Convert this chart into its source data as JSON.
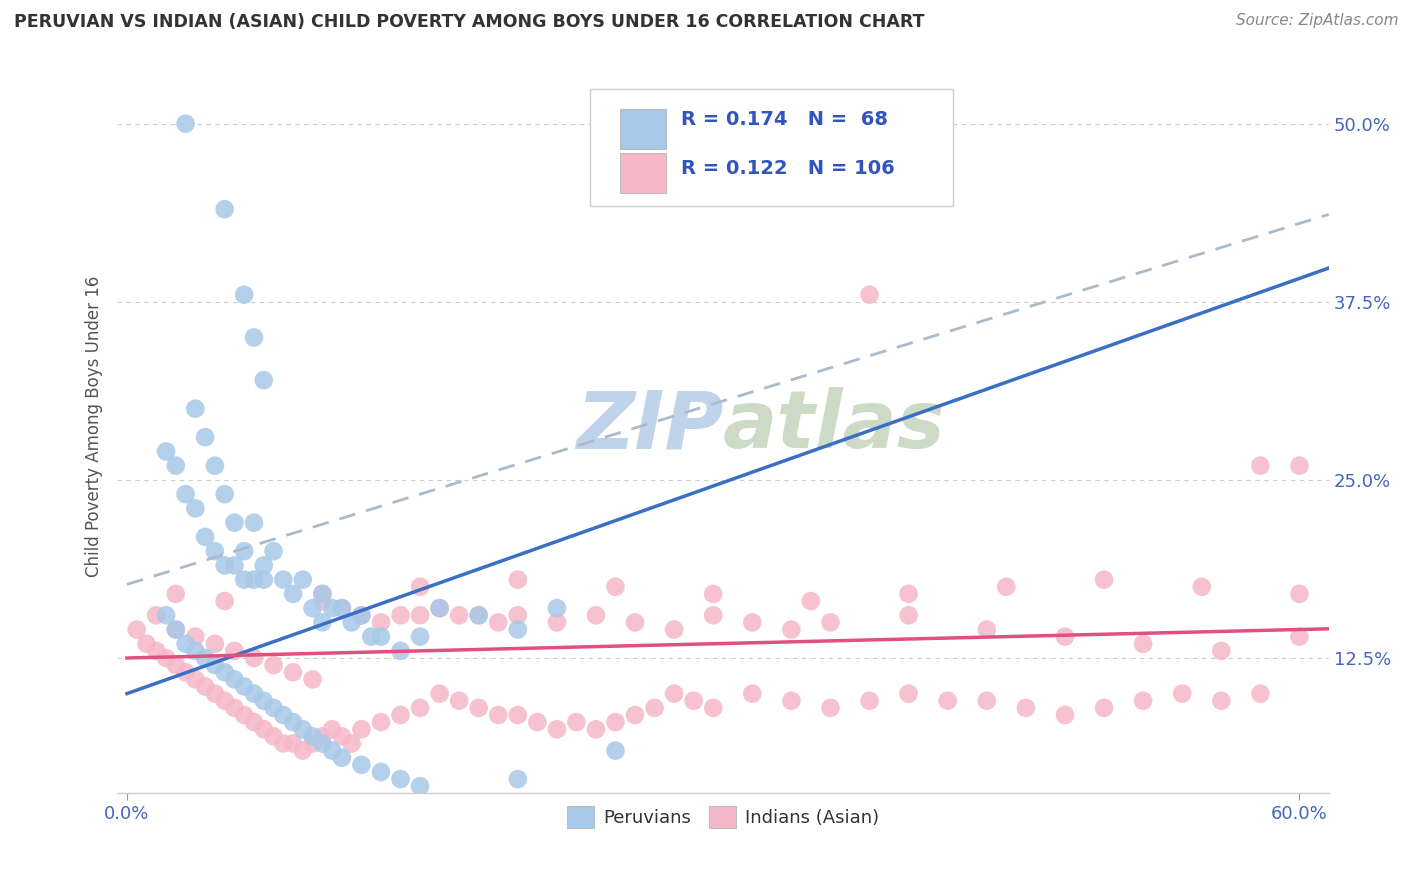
{
  "title": "PERUVIAN VS INDIAN (ASIAN) CHILD POVERTY AMONG BOYS UNDER 16 CORRELATION CHART",
  "source": "Source: ZipAtlas.com",
  "ylabel": "Child Poverty Among Boys Under 16",
  "ytick_labels": [
    "12.5%",
    "25.0%",
    "37.5%",
    "50.0%"
  ],
  "ytick_values": [
    0.125,
    0.25,
    0.375,
    0.5
  ],
  "xtick_labels": [
    "0.0%",
    "60.0%"
  ],
  "xtick_values": [
    0.0,
    0.6
  ],
  "xlim": [
    -0.005,
    0.615
  ],
  "ylim": [
    0.03,
    0.545
  ],
  "legend1_label": "Peruvians",
  "legend2_label": "Indians (Asian)",
  "R1": 0.174,
  "N1": 68,
  "R2": 0.122,
  "N2": 106,
  "blue_color": "#a8c8e8",
  "blue_line_color": "#3a6fc4",
  "pink_color": "#f5b8c8",
  "pink_line_color": "#e05080",
  "gray_dash_color": "#aabbcc",
  "watermark_color": "#c8d8e8",
  "background": "#ffffff",
  "blue_x": [
    0.03,
    0.05,
    0.06,
    0.065,
    0.07,
    0.035,
    0.04,
    0.045,
    0.05,
    0.055,
    0.06,
    0.065,
    0.07,
    0.02,
    0.025,
    0.03,
    0.035,
    0.04,
    0.045,
    0.05,
    0.055,
    0.06,
    0.065,
    0.07,
    0.075,
    0.08,
    0.085,
    0.09,
    0.095,
    0.1,
    0.1,
    0.105,
    0.11,
    0.115,
    0.12,
    0.125,
    0.13,
    0.14,
    0.15,
    0.16,
    0.18,
    0.2,
    0.22,
    0.02,
    0.025,
    0.03,
    0.035,
    0.04,
    0.045,
    0.05,
    0.055,
    0.06,
    0.065,
    0.07,
    0.075,
    0.08,
    0.085,
    0.09,
    0.095,
    0.1,
    0.105,
    0.11,
    0.12,
    0.13,
    0.14,
    0.15,
    0.2,
    0.25
  ],
  "blue_y": [
    0.5,
    0.44,
    0.38,
    0.35,
    0.32,
    0.3,
    0.28,
    0.26,
    0.24,
    0.22,
    0.2,
    0.22,
    0.18,
    0.27,
    0.26,
    0.24,
    0.23,
    0.21,
    0.2,
    0.19,
    0.19,
    0.18,
    0.18,
    0.19,
    0.2,
    0.18,
    0.17,
    0.18,
    0.16,
    0.17,
    0.15,
    0.16,
    0.16,
    0.15,
    0.155,
    0.14,
    0.14,
    0.13,
    0.14,
    0.16,
    0.155,
    0.145,
    0.16,
    0.155,
    0.145,
    0.135,
    0.13,
    0.125,
    0.12,
    0.115,
    0.11,
    0.105,
    0.1,
    0.095,
    0.09,
    0.085,
    0.08,
    0.075,
    0.07,
    0.065,
    0.06,
    0.055,
    0.05,
    0.045,
    0.04,
    0.035,
    0.04,
    0.06
  ],
  "pink_x": [
    0.005,
    0.01,
    0.015,
    0.02,
    0.025,
    0.03,
    0.035,
    0.04,
    0.045,
    0.05,
    0.055,
    0.06,
    0.065,
    0.07,
    0.075,
    0.08,
    0.085,
    0.09,
    0.095,
    0.1,
    0.105,
    0.11,
    0.115,
    0.12,
    0.13,
    0.14,
    0.15,
    0.16,
    0.17,
    0.18,
    0.19,
    0.2,
    0.21,
    0.22,
    0.23,
    0.24,
    0.25,
    0.26,
    0.27,
    0.28,
    0.29,
    0.3,
    0.32,
    0.34,
    0.36,
    0.38,
    0.4,
    0.42,
    0.44,
    0.46,
    0.48,
    0.5,
    0.52,
    0.54,
    0.56,
    0.58,
    0.6,
    0.015,
    0.025,
    0.035,
    0.045,
    0.055,
    0.065,
    0.075,
    0.085,
    0.095,
    0.1,
    0.11,
    0.12,
    0.13,
    0.14,
    0.15,
    0.16,
    0.17,
    0.18,
    0.19,
    0.2,
    0.22,
    0.24,
    0.26,
    0.28,
    0.3,
    0.32,
    0.34,
    0.36,
    0.4,
    0.44,
    0.48,
    0.52,
    0.56,
    0.6,
    0.025,
    0.05,
    0.1,
    0.15,
    0.2,
    0.25,
    0.3,
    0.35,
    0.4,
    0.45,
    0.5,
    0.55,
    0.6,
    0.38,
    0.58
  ],
  "pink_y": [
    0.145,
    0.135,
    0.13,
    0.125,
    0.12,
    0.115,
    0.11,
    0.105,
    0.1,
    0.095,
    0.09,
    0.085,
    0.08,
    0.075,
    0.07,
    0.065,
    0.065,
    0.06,
    0.065,
    0.07,
    0.075,
    0.07,
    0.065,
    0.075,
    0.08,
    0.085,
    0.09,
    0.1,
    0.095,
    0.09,
    0.085,
    0.085,
    0.08,
    0.075,
    0.08,
    0.075,
    0.08,
    0.085,
    0.09,
    0.1,
    0.095,
    0.09,
    0.1,
    0.095,
    0.09,
    0.095,
    0.1,
    0.095,
    0.095,
    0.09,
    0.085,
    0.09,
    0.095,
    0.1,
    0.095,
    0.1,
    0.26,
    0.155,
    0.145,
    0.14,
    0.135,
    0.13,
    0.125,
    0.12,
    0.115,
    0.11,
    0.165,
    0.16,
    0.155,
    0.15,
    0.155,
    0.155,
    0.16,
    0.155,
    0.155,
    0.15,
    0.155,
    0.15,
    0.155,
    0.15,
    0.145,
    0.155,
    0.15,
    0.145,
    0.15,
    0.155,
    0.145,
    0.14,
    0.135,
    0.13,
    0.14,
    0.17,
    0.165,
    0.17,
    0.175,
    0.18,
    0.175,
    0.17,
    0.165,
    0.17,
    0.175,
    0.18,
    0.175,
    0.17,
    0.38,
    0.26
  ]
}
